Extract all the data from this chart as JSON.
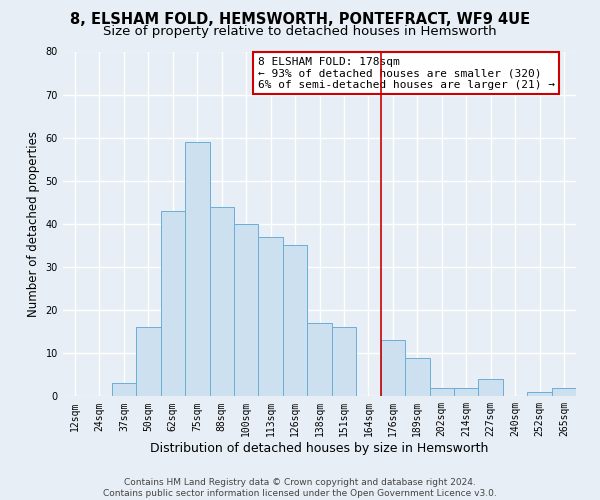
{
  "title": "8, ELSHAM FOLD, HEMSWORTH, PONTEFRACT, WF9 4UE",
  "subtitle": "Size of property relative to detached houses in Hemsworth",
  "xlabel": "Distribution of detached houses by size in Hemsworth",
  "ylabel": "Number of detached properties",
  "bar_labels": [
    "12sqm",
    "24sqm",
    "37sqm",
    "50sqm",
    "62sqm",
    "75sqm",
    "88sqm",
    "100sqm",
    "113sqm",
    "126sqm",
    "138sqm",
    "151sqm",
    "164sqm",
    "176sqm",
    "189sqm",
    "202sqm",
    "214sqm",
    "227sqm",
    "240sqm",
    "252sqm",
    "265sqm"
  ],
  "bar_heights": [
    0,
    0,
    3,
    16,
    43,
    59,
    44,
    40,
    37,
    35,
    17,
    16,
    0,
    13,
    9,
    2,
    2,
    4,
    0,
    1,
    2
  ],
  "bar_color": "#cce0f0",
  "bar_edge_color": "#6aaed6",
  "vline_index": 13,
  "vline_color": "#cc0000",
  "ylim": [
    0,
    80
  ],
  "yticks": [
    0,
    10,
    20,
    30,
    40,
    50,
    60,
    70,
    80
  ],
  "annotation_title": "8 ELSHAM FOLD: 178sqm",
  "annotation_line1": "← 93% of detached houses are smaller (320)",
  "annotation_line2": "6% of semi-detached houses are larger (21) →",
  "annotation_box_color": "#ffffff",
  "annotation_box_edge": "#cc0000",
  "footer_line1": "Contains HM Land Registry data © Crown copyright and database right 2024.",
  "footer_line2": "Contains public sector information licensed under the Open Government Licence v3.0.",
  "background_color": "#e8eef5",
  "grid_color": "#ffffff",
  "title_fontsize": 10.5,
  "subtitle_fontsize": 9.5,
  "ylabel_fontsize": 8.5,
  "xlabel_fontsize": 9,
  "tick_fontsize": 7,
  "annotation_fontsize": 8,
  "footer_fontsize": 6.5
}
